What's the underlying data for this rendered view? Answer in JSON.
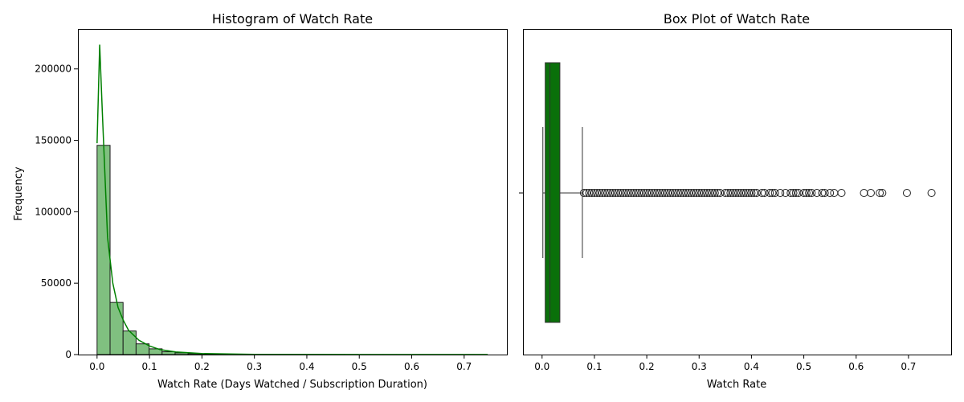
{
  "chart_data": [
    {
      "type": "histogram",
      "title": "Histogram of Watch Rate",
      "xlabel": "Watch Rate (Days Watched / Subscription Duration)",
      "ylabel": "Frequency",
      "xlim": [
        -0.0365,
        0.7815
      ],
      "ylim": [
        0,
        228000
      ],
      "xticks": [
        0.0,
        0.1,
        0.2,
        0.3,
        0.4,
        0.5,
        0.6,
        0.7
      ],
      "xtick_labels": [
        "0.0",
        "0.1",
        "0.2",
        "0.3",
        "0.4",
        "0.5",
        "0.6",
        "0.7"
      ],
      "yticks": [
        0,
        50000,
        100000,
        150000,
        200000
      ],
      "ytick_labels": [
        "0",
        "50000",
        "100000",
        "150000",
        "200000"
      ],
      "bin_start": 0.0,
      "bin_width": 0.0248,
      "values": [
        146500,
        36500,
        16500,
        7500,
        4000,
        2000,
        1200,
        700,
        400,
        250,
        180,
        130,
        100,
        80,
        60,
        50,
        40,
        30,
        25,
        20,
        15,
        12,
        10,
        8,
        6,
        5,
        4,
        3,
        3,
        2
      ],
      "kde": {
        "x": [
          0.0,
          0.005,
          0.01,
          0.02,
          0.03,
          0.04,
          0.05,
          0.06,
          0.08,
          0.1,
          0.12,
          0.15,
          0.2,
          0.3,
          0.4,
          0.5,
          0.6,
          0.7,
          0.745
        ],
        "y": [
          148000,
          217000,
          170000,
          82000,
          50000,
          33000,
          24000,
          17000,
          10000,
          6000,
          3500,
          1800,
          700,
          150,
          50,
          20,
          10,
          5,
          3
        ]
      },
      "colors": {
        "bar_fill": "#80c080",
        "bar_edge": "#1a1a1a",
        "kde_line": "#008000"
      },
      "grid": false,
      "legend": "none"
    },
    {
      "type": "box",
      "title": "Box Plot of Watch Rate",
      "xlabel": "Watch Rate",
      "ylabel": "",
      "xlim": [
        -0.0365,
        0.7815
      ],
      "xticks": [
        0.0,
        0.1,
        0.2,
        0.3,
        0.4,
        0.5,
        0.6,
        0.7
      ],
      "xtick_labels": [
        "0.0",
        "0.1",
        "0.2",
        "0.3",
        "0.4",
        "0.5",
        "0.6",
        "0.7"
      ],
      "box": {
        "whisker_low": 0.0015,
        "q1": 0.006,
        "median": 0.015,
        "q3": 0.034,
        "whisker_high": 0.077
      },
      "outliers": [
        0.08,
        0.085,
        0.09,
        0.095,
        0.1,
        0.105,
        0.11,
        0.115,
        0.12,
        0.125,
        0.13,
        0.135,
        0.14,
        0.145,
        0.15,
        0.155,
        0.16,
        0.165,
        0.17,
        0.175,
        0.18,
        0.185,
        0.19,
        0.195,
        0.2,
        0.205,
        0.21,
        0.215,
        0.22,
        0.225,
        0.23,
        0.235,
        0.24,
        0.245,
        0.25,
        0.255,
        0.26,
        0.265,
        0.27,
        0.275,
        0.28,
        0.285,
        0.29,
        0.295,
        0.3,
        0.305,
        0.31,
        0.315,
        0.32,
        0.325,
        0.33,
        0.335,
        0.34,
        0.35,
        0.355,
        0.36,
        0.365,
        0.37,
        0.375,
        0.38,
        0.385,
        0.39,
        0.395,
        0.4,
        0.405,
        0.41,
        0.42,
        0.425,
        0.435,
        0.44,
        0.445,
        0.455,
        0.465,
        0.475,
        0.48,
        0.485,
        0.49,
        0.5,
        0.505,
        0.51,
        0.515,
        0.525,
        0.535,
        0.54,
        0.55,
        0.558,
        0.572,
        0.615,
        0.628,
        0.645,
        0.65,
        0.697,
        0.744
      ],
      "colors": {
        "box_fill": "#0a700a",
        "outline": "#333333"
      },
      "grid": false,
      "legend": "none"
    }
  ]
}
